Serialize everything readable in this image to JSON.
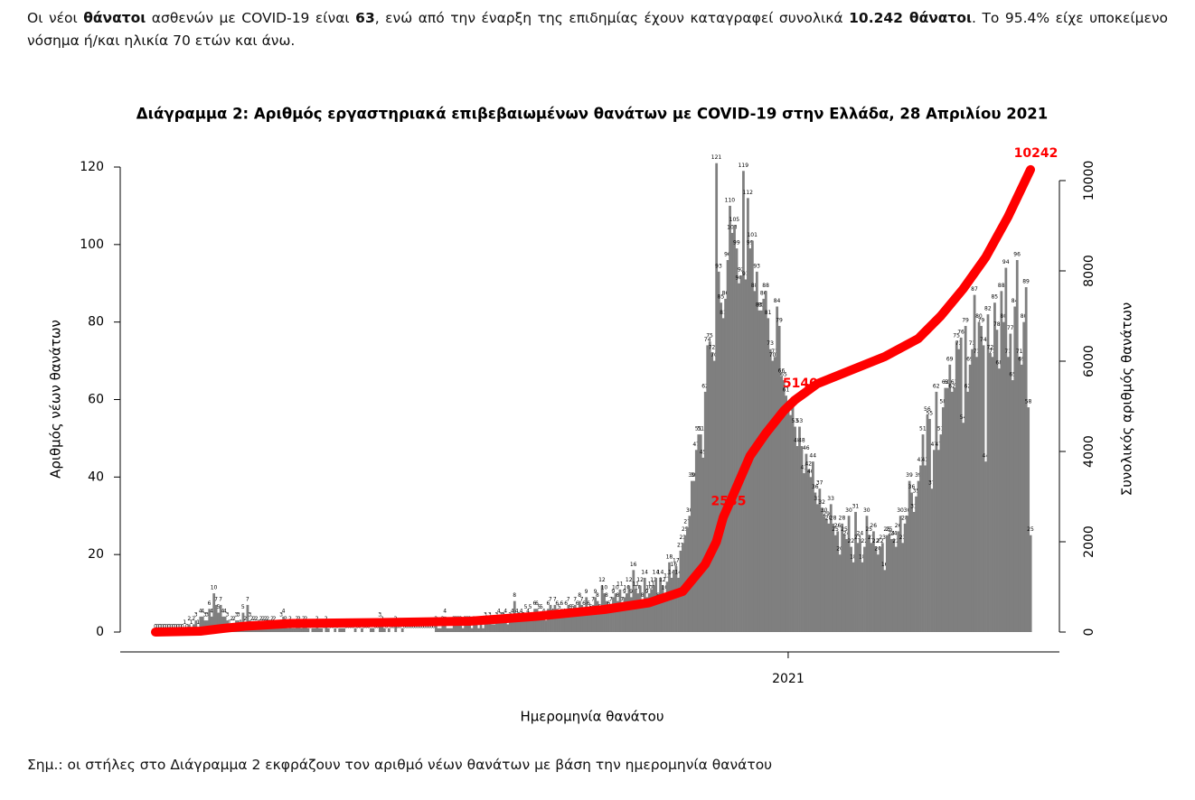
{
  "intro": [
    {
      "text": "Οι νέοι ",
      "bold": false
    },
    {
      "text": "θάνατοι",
      "bold": true
    },
    {
      "text": " ασθενών με COVID-19 είναι ",
      "bold": false
    },
    {
      "text": "63",
      "bold": true
    },
    {
      "text": ", ενώ από την έναρξη της επιδημίας έχουν καταγραφεί συνολικά ",
      "bold": false
    },
    {
      "text": "10.242 θάνατοι",
      "bold": true
    },
    {
      "text": ".  Το 95.4% είχε υποκείμενο νόσημα ή/και ηλικία 70 ετών και άνω.",
      "bold": false
    }
  ],
  "chart_data": {
    "type": "bar",
    "title": "Διάγραμμα 2: Αριθμός εργαστηριακά επιβεβαιωμένων θανάτων με COVID-19 στην Ελλάδα, 28 Απριλίου 2021",
    "ylabel": "Αριθμός νέων θανάτων",
    "y2label": "Συνολικός αριθμός θανάτων",
    "xlabel": "Ημερομηνία θανάτου",
    "color": "#7f7f7f",
    "categories": null,
    "xticks": [
      {
        "value": 282,
        "label": "2021"
      }
    ],
    "ylim": [
      0,
      120
    ],
    "yticks": [
      0,
      20,
      40,
      60,
      80,
      100,
      120
    ],
    "y2lim": [
      0,
      10300
    ],
    "y2ticks": [
      0,
      2000,
      4000,
      6000,
      8000,
      10000
    ],
    "values": [
      0,
      0,
      0,
      0,
      0,
      0,
      0,
      0,
      0,
      0,
      0,
      0,
      0,
      1,
      0,
      2,
      1,
      2,
      3,
      1,
      4,
      4,
      3,
      3,
      6,
      4,
      10,
      7,
      5,
      7,
      4,
      4,
      3,
      1,
      2,
      2,
      3,
      3,
      1,
      5,
      2,
      7,
      3,
      2,
      2,
      2,
      1,
      2,
      2,
      2,
      2,
      1,
      2,
      2,
      1,
      1,
      3,
      4,
      2,
      1,
      2,
      1,
      1,
      2,
      2,
      1,
      2,
      2,
      1,
      0,
      1,
      1,
      2,
      1,
      1,
      0,
      2,
      1,
      0,
      0,
      1,
      0,
      1,
      1,
      1,
      0,
      0,
      0,
      0,
      1,
      0,
      0,
      1,
      0,
      0,
      0,
      1,
      1,
      0,
      0,
      3,
      2,
      1,
      0,
      1,
      0,
      0,
      2,
      0,
      0,
      1,
      0,
      0,
      0,
      0,
      0,
      0,
      0,
      0,
      0,
      0,
      0,
      0,
      0,
      0,
      2,
      1,
      1,
      2,
      4,
      1,
      1,
      1,
      2,
      2,
      2,
      2,
      1,
      2,
      2,
      2,
      1,
      2,
      2,
      1,
      2,
      1,
      3,
      2,
      3,
      2,
      2,
      3,
      4,
      3,
      3,
      4,
      2,
      3,
      4,
      8,
      4,
      3,
      4,
      3,
      5,
      4,
      5,
      3,
      6,
      6,
      5,
      5,
      4,
      3,
      6,
      7,
      4,
      7,
      6,
      5,
      6,
      4,
      6,
      7,
      5,
      5,
      7,
      6,
      8,
      7,
      6,
      9,
      6,
      5,
      7,
      9,
      8,
      5,
      12,
      10,
      8,
      6,
      7,
      9,
      10,
      8,
      11,
      7,
      9,
      10,
      12,
      9,
      16,
      11,
      10,
      12,
      8,
      14,
      9,
      10,
      11,
      12,
      14,
      8,
      14,
      12,
      10,
      13,
      18,
      14,
      16,
      17,
      14,
      21,
      23,
      25,
      27,
      30,
      39,
      39,
      47,
      51,
      51,
      45,
      62,
      74,
      75,
      72,
      70,
      121,
      93,
      85,
      81,
      86,
      96,
      110,
      103,
      105,
      99,
      90,
      92,
      119,
      91,
      112,
      99,
      101,
      88,
      93,
      83,
      83,
      86,
      88,
      81,
      73,
      70,
      71,
      84,
      79,
      66,
      65,
      61,
      57,
      56,
      58,
      53,
      48,
      53,
      48,
      41,
      46,
      42,
      40,
      44,
      36,
      33,
      37,
      32,
      30,
      29,
      28,
      33,
      28,
      25,
      26,
      20,
      28,
      25,
      24,
      30,
      22,
      18,
      31,
      23,
      24,
      18,
      22,
      30,
      25,
      23,
      26,
      22,
      20,
      22,
      23,
      16,
      25,
      25,
      24,
      24,
      22,
      26,
      30,
      23,
      28,
      30,
      39,
      36,
      31,
      35,
      39,
      43,
      51,
      43,
      56,
      55,
      37,
      47,
      62,
      47,
      51,
      58,
      63,
      63,
      69,
      62,
      63,
      75,
      73,
      76,
      54,
      79,
      62,
      69,
      73,
      87,
      71,
      80,
      79,
      74,
      44,
      82,
      72,
      71,
      85,
      78,
      68,
      88,
      80,
      94,
      71,
      77,
      65,
      84,
      96,
      71,
      69,
      80,
      89,
      58,
      25
    ],
    "series": [
      {
        "type": "line",
        "axis": "y2",
        "color": "#ff0000",
        "x": [
          0,
          20,
          30,
          40,
          60,
          100,
          140,
          170,
          200,
          220,
          235,
          245,
          250,
          253,
          258,
          265,
          272,
          280,
          285,
          295,
          310,
          325,
          340,
          350,
          360,
          370,
          380,
          390
        ],
        "values": [
          0,
          20,
          80,
          130,
          190,
          210,
          240,
          350,
          500,
          650,
          900,
          1500,
          2000,
          2535,
          3100,
          3900,
          4400,
          4900,
          5140,
          5500,
          5800,
          6100,
          6500,
          7000,
          7600,
          8300,
          9200,
          10242
        ]
      }
    ],
    "annotations": [
      2535,
      5140,
      10242
    ]
  },
  "note": "Σημ.: οι στήλες στο Διάγραμμα 2 εκφράζουν τον αριθμό νέων θανάτων με βάση την ημερομηνία θανάτου"
}
